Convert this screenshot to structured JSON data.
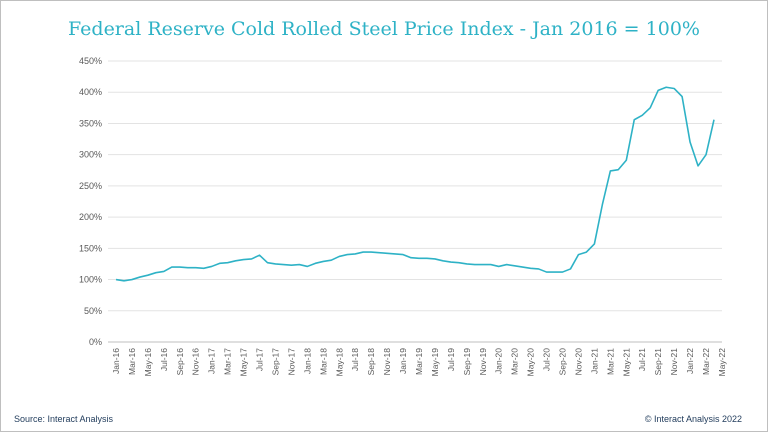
{
  "chart_data": {
    "type": "line",
    "title": "Federal Reserve Cold Rolled Steel Price Index - Jan 2016 = 100%",
    "xlabel": "",
    "ylabel": "",
    "ylim": [
      0,
      450
    ],
    "y_ticks": [
      "0%",
      "50%",
      "100%",
      "150%",
      "200%",
      "250%",
      "300%",
      "350%",
      "400%",
      "450%"
    ],
    "y_tick_values": [
      0,
      50,
      100,
      150,
      200,
      250,
      300,
      350,
      400,
      450
    ],
    "x_tick_labels": [
      "Jan-16",
      "Mar-16",
      "May-16",
      "Jul-16",
      "Sep-16",
      "Nov-16",
      "Jan-17",
      "Mar-17",
      "May-17",
      "Jul-17",
      "Sep-17",
      "Nov-17",
      "Jan-18",
      "Mar-18",
      "May-18",
      "Jul-18",
      "Sep-18",
      "Nov-18",
      "Jan-19",
      "Mar-19",
      "May-19",
      "Jul-19",
      "Sep-19",
      "Nov-19",
      "Jan-20",
      "Mar-20",
      "May-20",
      "Jul-20",
      "Sep-20",
      "Nov-20",
      "Jan-21",
      "Mar-21",
      "May-21",
      "Jul-21",
      "Sep-21",
      "Nov-21",
      "Jan-22",
      "Mar-22",
      "May-22"
    ],
    "grid": true,
    "series": [
      {
        "name": "Cold Rolled Steel Price Index",
        "color": "#2eb2c6",
        "values": [
          100,
          98,
          100,
          104,
          107,
          111,
          113,
          120,
          120,
          119,
          119,
          118,
          121,
          126,
          127,
          130,
          132,
          133,
          139,
          127,
          125,
          124,
          123,
          124,
          121,
          126,
          129,
          131,
          137,
          140,
          141,
          144,
          144,
          143,
          142,
          141,
          140,
          135,
          134,
          134,
          133,
          130,
          128,
          127,
          125,
          124,
          124,
          124,
          121,
          124,
          122,
          120,
          118,
          117,
          112,
          112,
          112,
          117,
          140,
          144,
          157,
          220,
          274,
          276,
          291,
          356,
          363,
          375,
          403,
          408,
          406,
          393,
          320,
          282,
          300,
          356
        ]
      }
    ]
  },
  "footer": {
    "source": "Source: Interact Analysis",
    "copyright": "© Interact Analysis 2022"
  },
  "colors": {
    "line": "#2eb2c6",
    "grid": "#e3e3e3",
    "axis": "#bfbfbf",
    "tick_text": "#595959",
    "title": "#2eb2c6"
  }
}
